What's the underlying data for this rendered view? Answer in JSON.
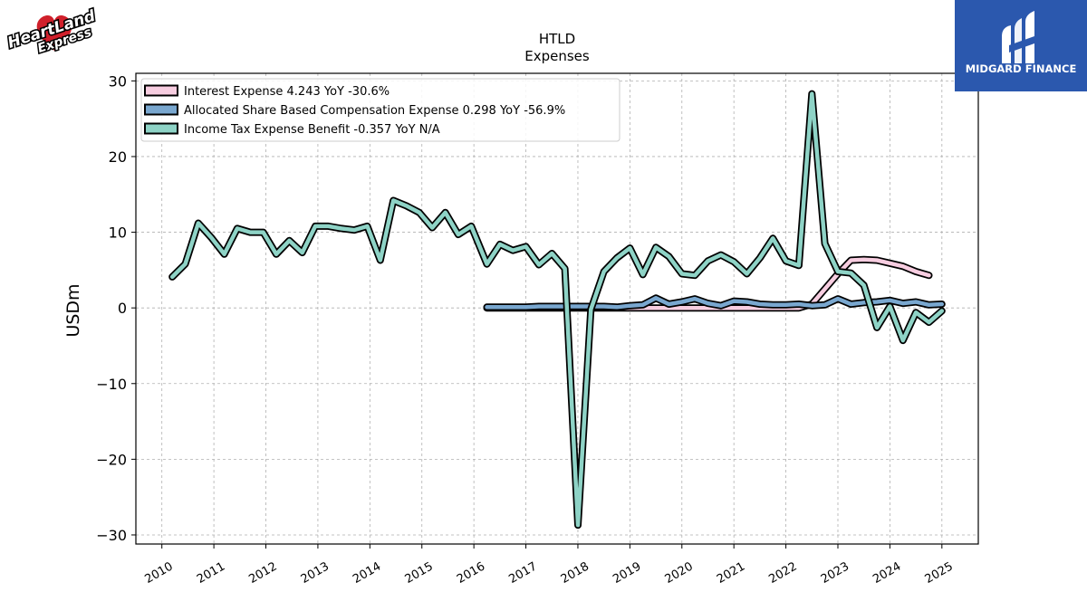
{
  "logos": {
    "left": {
      "text_top": "HeartLand",
      "text_bottom": "Express"
    },
    "right": {
      "name": "MIDGARD FINANCE"
    }
  },
  "colors": {
    "interest": "#f7cde0",
    "share": "#79a7cf",
    "tax": "#8ed3c6",
    "outline": "#000000",
    "brand_red": "#d0202b",
    "midgard_blue": "#2b58ae"
  },
  "chart_data": {
    "type": "line",
    "title": "HTLD",
    "subtitle": "Expenses",
    "xlabel": "",
    "ylabel": "USDm",
    "xlim": [
      2009.5,
      2025.7
    ],
    "ylim": [
      -31.2,
      31
    ],
    "y_ticks": [
      -30,
      -20,
      -10,
      0,
      10,
      20,
      30
    ],
    "x_ticks": [
      2010,
      2011,
      2012,
      2013,
      2014,
      2015,
      2016,
      2017,
      2018,
      2019,
      2020,
      2021,
      2022,
      2023,
      2024,
      2025
    ],
    "grid": true,
    "legend_position": "top-left",
    "series": [
      {
        "name": "Interest Expense 4.243 YoY -30.6%",
        "color_key": "interest",
        "x": [
          2016.25,
          2016.5,
          2016.75,
          2017.0,
          2017.25,
          2017.5,
          2017.75,
          2018.0,
          2018.25,
          2018.5,
          2018.75,
          2019.0,
          2019.25,
          2019.5,
          2019.75,
          2020.0,
          2020.25,
          2020.5,
          2020.75,
          2021.0,
          2021.25,
          2021.5,
          2021.75,
          2022.0,
          2022.25,
          2022.5,
          2022.75,
          2023.0,
          2023.25,
          2023.5,
          2023.75,
          2024.0,
          2024.25,
          2024.5,
          2024.75
        ],
        "y": [
          0,
          0,
          0,
          0,
          0,
          0,
          0,
          0,
          0,
          0,
          0,
          0,
          0,
          0,
          0,
          0,
          0,
          0,
          0,
          0,
          0,
          0,
          0,
          0,
          0,
          0.5,
          2.5,
          4.5,
          6.3,
          6.4,
          6.3,
          5.9,
          5.5,
          4.8,
          4.3
        ]
      },
      {
        "name": "Allocated Share Based Compensation Expense 0.298 YoY -56.9%",
        "color_key": "share",
        "x": [
          2016.25,
          2016.5,
          2016.75,
          2017.0,
          2017.25,
          2017.5,
          2017.75,
          2018.0,
          2018.25,
          2018.5,
          2018.75,
          2019.0,
          2019.25,
          2019.5,
          2019.75,
          2020.0,
          2020.25,
          2020.5,
          2020.75,
          2021.0,
          2021.25,
          2021.5,
          2021.75,
          2022.0,
          2022.25,
          2022.5,
          2022.75,
          2023.0,
          2023.25,
          2023.5,
          2023.75,
          2024.0,
          2024.25,
          2024.5,
          2024.75,
          2025.0
        ],
        "y": [
          0.1,
          0.1,
          0.1,
          0.1,
          0.2,
          0.2,
          0.2,
          0.2,
          0.2,
          0.2,
          0.1,
          0.3,
          0.4,
          1.3,
          0.5,
          0.8,
          1.2,
          0.6,
          0.3,
          0.9,
          0.8,
          0.5,
          0.4,
          0.4,
          0.5,
          0.3,
          0.4,
          1.2,
          0.5,
          0.7,
          0.8,
          1.0,
          0.6,
          0.8,
          0.4,
          0.5
        ]
      },
      {
        "name": "Income Tax Expense Benefit -0.357 YoY N/A",
        "color_key": "tax",
        "x": [
          2010.2,
          2010.45,
          2010.7,
          2010.95,
          2011.2,
          2011.45,
          2011.7,
          2011.95,
          2012.2,
          2012.45,
          2012.7,
          2012.95,
          2013.2,
          2013.45,
          2013.7,
          2013.95,
          2014.2,
          2014.45,
          2014.7,
          2014.95,
          2015.2,
          2015.45,
          2015.7,
          2015.95,
          2016.25,
          2016.5,
          2016.75,
          2017.0,
          2017.25,
          2017.5,
          2017.75,
          2018.0,
          2018.25,
          2018.5,
          2018.75,
          2019.0,
          2019.25,
          2019.5,
          2019.75,
          2020.0,
          2020.25,
          2020.5,
          2020.75,
          2021.0,
          2021.25,
          2021.5,
          2021.75,
          2022.0,
          2022.25,
          2022.5,
          2022.75,
          2023.0,
          2023.25,
          2023.5,
          2023.75,
          2024.0,
          2024.25,
          2024.5,
          2024.75,
          2025.0
        ],
        "y": [
          4.1,
          5.8,
          11.2,
          9.3,
          7.1,
          10.5,
          10.0,
          10.0,
          7.1,
          8.9,
          7.3,
          10.8,
          10.8,
          10.5,
          10.3,
          10.8,
          6.3,
          14.2,
          13.5,
          12.6,
          10.6,
          12.6,
          9.7,
          10.8,
          5.8,
          8.4,
          7.6,
          8.1,
          5.7,
          7.2,
          5.2,
          -28.7,
          -0.2,
          4.8,
          6.6,
          7.9,
          4.4,
          8.0,
          6.8,
          4.5,
          4.3,
          6.2,
          7.0,
          6.1,
          4.5,
          6.6,
          9.2,
          6.2,
          5.6,
          28.3,
          8.5,
          4.8,
          4.6,
          3.0,
          -2.6,
          0.2,
          -4.3,
          -0.6,
          -1.9,
          -0.4
        ]
      }
    ]
  }
}
